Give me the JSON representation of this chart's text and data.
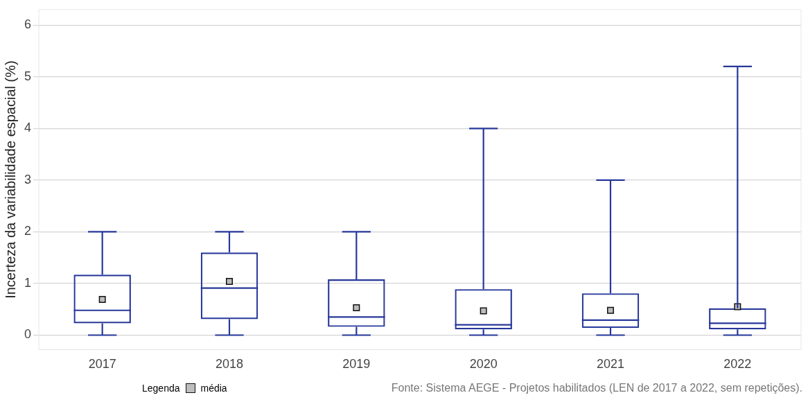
{
  "chart_data": {
    "type": "box",
    "ylabel": "Incerteza da variabilidade espacial (%)",
    "legend_title": "Legenda",
    "legend": "bottom left",
    "grid": "y",
    "annotations": [
      "Fonte: Sistema AEGE - Projetos habilitados (LEN de 2017 a 2022, sem repetições)."
    ],
    "categories": [
      "2017",
      "2018",
      "2019",
      "2020",
      "2021",
      "2022"
    ],
    "ylim": [
      -0.28,
      6.3
    ],
    "yticks": [
      0,
      1,
      2,
      3,
      4,
      5,
      6
    ],
    "series": [
      {
        "color": "#27389a",
        "boxes": [
          {
            "low": 0,
            "q1": 0.23,
            "median": 0.48,
            "q3": 1.17,
            "high": 2
          },
          {
            "low": 0,
            "q1": 0.31,
            "median": 0.91,
            "q3": 1.6,
            "high": 2
          },
          {
            "low": 0,
            "q1": 0.16,
            "median": 0.35,
            "q3": 1.08,
            "high": 2
          },
          {
            "low": 0,
            "q1": 0.11,
            "median": 0.2,
            "q3": 0.89,
            "high": 4
          },
          {
            "low": 0,
            "q1": 0.14,
            "median": 0.29,
            "q3": 0.81,
            "high": 3
          },
          {
            "low": 0,
            "q1": 0.11,
            "median": 0.23,
            "q3": 0.52,
            "high": 5.2
          }
        ]
      },
      {
        "type": "scatter",
        "name": "média",
        "color": "#bdbdbd",
        "marker": "square",
        "values": [
          0.69,
          1.04,
          0.53,
          0.47,
          0.48,
          0.55
        ]
      }
    ]
  }
}
